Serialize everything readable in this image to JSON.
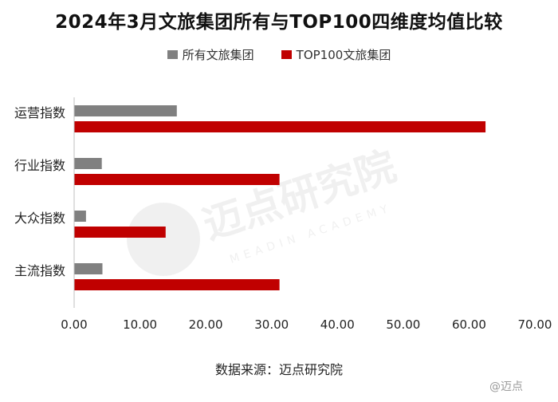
{
  "chart_data": {
    "type": "bar",
    "orientation": "horizontal",
    "title": "2024年3月文旅集团所有与TOP100四维度均值比较",
    "categories": [
      "运营指数",
      "行业指数",
      "大众指数",
      "主流指数"
    ],
    "series": [
      {
        "name": "所有文旅集团",
        "color": "#808080",
        "values": [
          15.6,
          4.2,
          1.8,
          4.3
        ]
      },
      {
        "name": "TOP100文旅集团",
        "color": "#c00000",
        "values": [
          62.5,
          31.2,
          13.9,
          31.2
        ]
      }
    ],
    "xlim": [
      0,
      70
    ],
    "x_ticks": [
      "0.00",
      "10.00",
      "20.00",
      "30.00",
      "40.00",
      "50.00",
      "60.00",
      "70.00"
    ],
    "legend_position": "top",
    "grid": false
  },
  "source": "数据来源：迈点研究院",
  "watermark": {
    "text_cn": "迈点研究院",
    "text_en": "MEADIN ACADEMY",
    "corner": "@迈点"
  }
}
